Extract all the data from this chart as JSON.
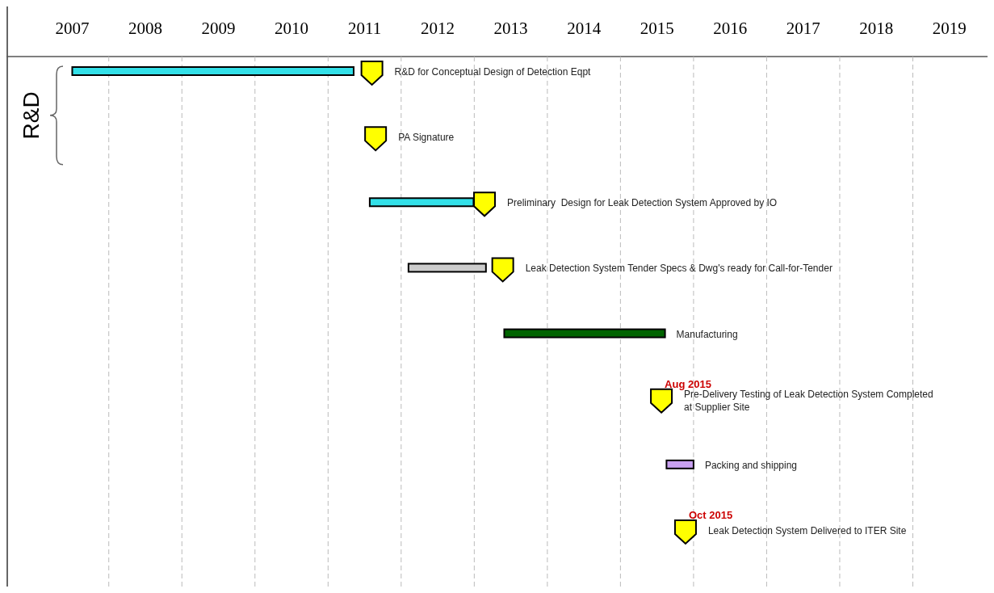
{
  "chart_data": {
    "type": "bar",
    "orientation": "horizontal",
    "categories": [
      "R&D for Conceptual Design of Detection Eqpt",
      "PA Signature",
      "Preliminary  Design for Leak Detection System Approved by IO",
      "Leak Detection System Tender Specs & Dwg's ready for Call-for-Tender",
      "Manufacturing",
      "Pre-Delivery Testing of Leak Detection System Completed at Supplier Site",
      "Packing and shipping",
      "Leak Detection System Delivered to ITER Site"
    ],
    "series": [
      {
        "values": [
          3.85,
          null,
          1.42,
          1.06,
          2.2,
          null,
          0.37,
          null
        ],
        "base": [
          2007.5,
          null,
          2011.57,
          2012.1,
          2013.41,
          null,
          2015.63,
          null
        ],
        "colors": [
          "#33e0e8",
          null,
          "#33e0e8",
          "#cccccc",
          "#006400",
          null,
          "#c8a0f0",
          null
        ]
      },
      {
        "type": "scatter",
        "color": "#ffff00",
        "marker": "triangle",
        "values": [
          2011.6,
          2011.65,
          2013.14,
          2013.39,
          null,
          2015.56,
          null,
          2015.89
        ]
      }
    ],
    "xlim": [
      2006.6,
      2020
    ],
    "xticks": [
      {
        "value": 2007.5,
        "label": "2007"
      },
      {
        "value": 2008.5,
        "label": "2008"
      },
      {
        "value": 2009.5,
        "label": "2009"
      },
      {
        "value": 2010.5,
        "label": "2010"
      },
      {
        "value": 2011.5,
        "label": "2011"
      },
      {
        "value": 2012.5,
        "label": "2012"
      },
      {
        "value": 2013.5,
        "label": "2013"
      },
      {
        "value": 2014.5,
        "label": "2014"
      },
      {
        "value": 2015.5,
        "label": "2015"
      },
      {
        "value": 2016.5,
        "label": "2016"
      },
      {
        "value": 2017.5,
        "label": "2017"
      },
      {
        "value": 2018.5,
        "label": "2018"
      },
      {
        "value": 2019.5,
        "label": "2019"
      },
      {
        "value": 2008,
        "label": null
      },
      {
        "value": 2009,
        "label": null
      },
      {
        "value": 2010,
        "label": null
      },
      {
        "value": 2011,
        "label": null
      },
      {
        "value": 2012,
        "label": null
      },
      {
        "value": 2013,
        "label": null
      },
      {
        "value": 2014,
        "label": null
      },
      {
        "value": 2015,
        "label": null
      },
      {
        "value": 2016,
        "label": null
      },
      {
        "value": 2017,
        "label": null
      },
      {
        "value": 2018,
        "label": null
      },
      {
        "value": 2019,
        "label": null
      }
    ],
    "grid": "x",
    "annotations": [
      "R&D",
      {
        "text": "Aug 2015",
        "x": 2015.56,
        "y": "Pre-Delivery Testing of Leak Detection System Completed at Supplier Site"
      },
      {
        "text": "Oct 2015",
        "x": 2015.89,
        "y": "Leak Detection System Delivered to ITER Site"
      }
    ]
  }
}
